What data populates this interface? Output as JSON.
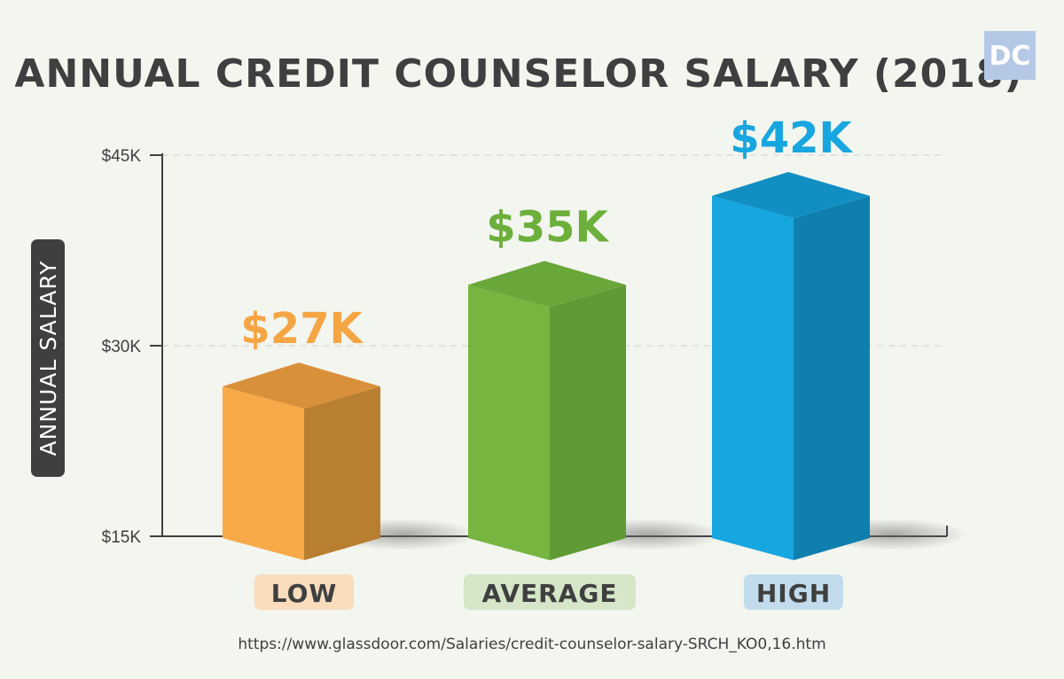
{
  "logo": "DC",
  "source": "https://www.glassdoor.com/Salaries/credit-counselor-salary-SRCH_KO0,16.htm",
  "chart_data": {
    "type": "bar",
    "title": "ANNUAL CREDIT COUNSELOR SALARY (2018)",
    "ylabel": "ANNUAL SALARY",
    "xlabel": "",
    "categories": [
      "LOW",
      "AVERAGE",
      "HIGH"
    ],
    "values": [
      27000,
      35000,
      42000
    ],
    "data_labels": [
      "$27K",
      "$35K",
      "$42K"
    ],
    "yticks": [
      15000,
      30000,
      45000
    ],
    "ytick_labels": [
      "$15K",
      "$30K",
      "$45K"
    ],
    "ylim": [
      15000,
      45000
    ],
    "grid": true,
    "colors": {
      "bars": [
        "#f8a948",
        "#76b540",
        "#16a6e0"
      ],
      "bar_sides": [
        "#b87f30",
        "#5f9a34",
        "#0f7fad"
      ],
      "bar_tops": [
        "#d9903a",
        "#69a73a",
        "#118fc3"
      ],
      "labels": [
        "#f6a544",
        "#6caf3b",
        "#17a6df"
      ],
      "category_bg": [
        "#f8dcbc",
        "#d6e6c8",
        "#c2dced"
      ]
    }
  }
}
